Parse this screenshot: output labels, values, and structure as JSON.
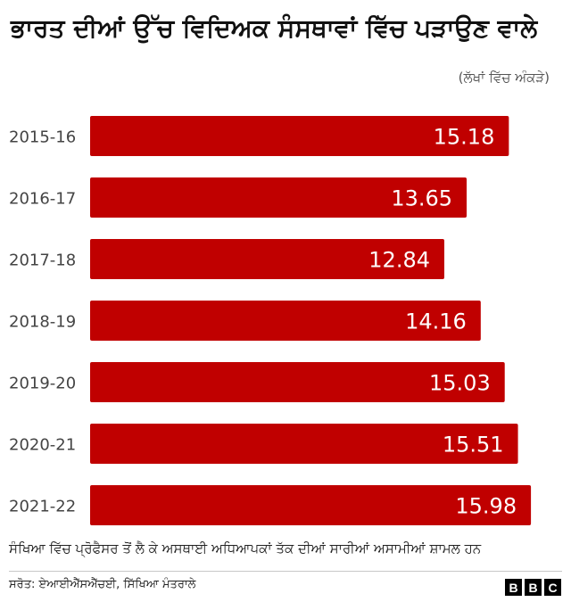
{
  "colors": {
    "bar": "#c00000",
    "bar_label": "#ffffff",
    "category_label": "#444444"
  },
  "chart_data": {
    "type": "bar",
    "orientation": "horizontal",
    "title": "ਭਾਰਤ ਦੀਆਂ ਉੱਚ ਵਿਦਿਅਕ ਸੰਸਥਾਵਾਂ ਵਿੱਚ ਪੜਾਉਣ ਵਾਲੇ",
    "unit_note": "(ਲੱਖਾਂ ਵਿੱਚ ਅੰਕੜੇ)",
    "categories": [
      "2015-16",
      "2016-17",
      "2017-18",
      "2018-19",
      "2019-20",
      "2020-21",
      "2021-22"
    ],
    "values": [
      15.18,
      13.65,
      12.84,
      14.16,
      15.03,
      15.51,
      15.98
    ],
    "xlim": [
      0,
      17.4
    ],
    "grid": false,
    "legend": "none"
  },
  "footnote": "ਸੰਖਿਆ ਵਿੱਚ ਪ੍ਰੋਫੈਸਰ ਤੋਂ ਲੈ ਕੇ ਅਸਥਾਈ ਅਧਿਆਪਕਾਂ ਤੱਕ ਦੀਆਂ ਸਾਰੀਆਂ ਅਸਾਮੀਆਂ ਸ਼ਾਮਲ ਹਨ",
  "source": "ਸਰੋਤ: ਏਆਈਐੱਸਐੱਚਈ, ਸਿੱਖਿਆ ਮੰਤਰਾਲੇ",
  "logo": {
    "letters": [
      "B",
      "B",
      "C"
    ]
  }
}
